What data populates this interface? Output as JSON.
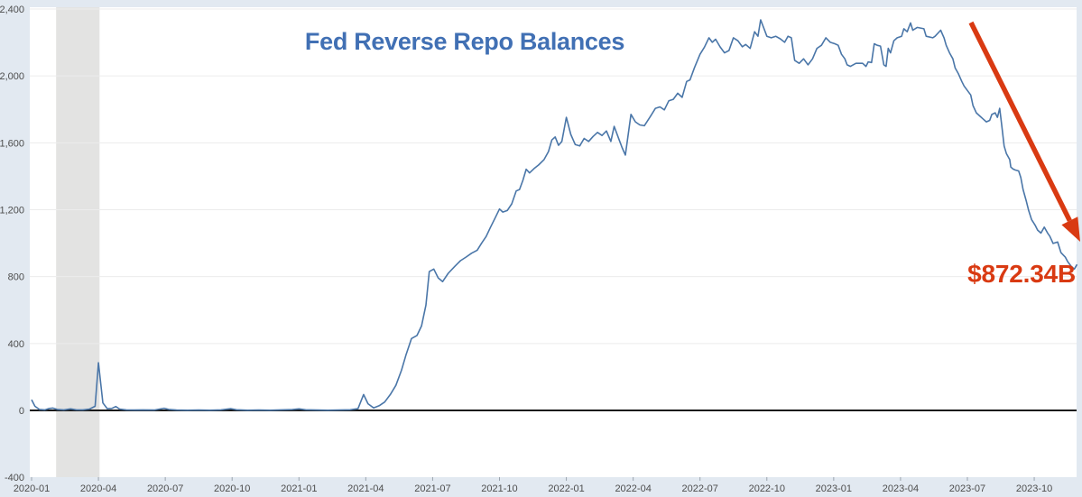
{
  "chart_data": {
    "type": "line",
    "title": "Fed Reverse Repo Balances",
    "xlabel": "",
    "ylabel": "",
    "y_unit": "billions of USD",
    "x_unit": "months since 2020-01",
    "ylim": [
      -400,
      2400
    ],
    "grid": true,
    "legend_position": "none",
    "y_ticks": [
      {
        "value": -400,
        "label": "-400"
      },
      {
        "value": 0,
        "label": "0"
      },
      {
        "value": 400,
        "label": "400"
      },
      {
        "value": 800,
        "label": "800"
      },
      {
        "value": 1200,
        "label": "1,200"
      },
      {
        "value": 1600,
        "label": "1,600"
      },
      {
        "value": 2000,
        "label": "2,000"
      },
      {
        "value": 2400,
        "label": "2,400"
      }
    ],
    "y_grid_values": [
      400,
      800,
      1200,
      1600,
      2000,
      2400
    ],
    "x_ticks": [
      {
        "month": 0,
        "label": "2020-01"
      },
      {
        "month": 3,
        "label": "2020-04"
      },
      {
        "month": 6,
        "label": "2020-07"
      },
      {
        "month": 9,
        "label": "2020-10"
      },
      {
        "month": 12,
        "label": "2021-01"
      },
      {
        "month": 15,
        "label": "2021-04"
      },
      {
        "month": 18,
        "label": "2021-07"
      },
      {
        "month": 21,
        "label": "2021-10"
      },
      {
        "month": 24,
        "label": "2022-01"
      },
      {
        "month": 27,
        "label": "2022-04"
      },
      {
        "month": 30,
        "label": "2022-07"
      },
      {
        "month": 33,
        "label": "2022-10"
      },
      {
        "month": 36,
        "label": "2023-01"
      },
      {
        "month": 39,
        "label": "2023-04"
      },
      {
        "month": 42,
        "label": "2023-07"
      },
      {
        "month": 45,
        "label": "2023-10"
      }
    ],
    "recession_band": {
      "from_month": 1.1,
      "to_month": 3.05
    },
    "series": [
      {
        "name": "Fed Reverse Repo Balances",
        "points": [
          [
            0,
            64
          ],
          [
            0.15,
            25
          ],
          [
            0.35,
            6
          ],
          [
            0.6,
            3
          ],
          [
            0.8,
            12
          ],
          [
            0.95,
            14
          ],
          [
            1.15,
            6
          ],
          [
            1.45,
            3
          ],
          [
            1.75,
            9
          ],
          [
            2.0,
            4
          ],
          [
            2.3,
            3
          ],
          [
            2.6,
            8
          ],
          [
            2.85,
            25
          ],
          [
            3.0,
            285
          ],
          [
            3.2,
            45
          ],
          [
            3.4,
            10
          ],
          [
            3.6,
            12
          ],
          [
            3.78,
            23
          ],
          [
            3.95,
            8
          ],
          [
            4.25,
            3
          ],
          [
            4.6,
            2
          ],
          [
            5.0,
            3
          ],
          [
            5.5,
            2
          ],
          [
            5.95,
            13
          ],
          [
            6.15,
            6
          ],
          [
            6.5,
            2
          ],
          [
            7.0,
            1
          ],
          [
            7.5,
            2
          ],
          [
            8.0,
            1
          ],
          [
            8.5,
            3
          ],
          [
            8.95,
            10
          ],
          [
            9.2,
            4
          ],
          [
            9.7,
            1
          ],
          [
            10.2,
            2
          ],
          [
            10.7,
            1
          ],
          [
            11.2,
            3
          ],
          [
            11.7,
            5
          ],
          [
            12.0,
            9
          ],
          [
            12.3,
            4
          ],
          [
            12.8,
            2
          ],
          [
            13.3,
            1
          ],
          [
            13.8,
            2
          ],
          [
            14.3,
            4
          ],
          [
            14.65,
            10
          ],
          [
            14.9,
            95
          ],
          [
            15.1,
            40
          ],
          [
            15.35,
            15
          ],
          [
            15.6,
            28
          ],
          [
            15.85,
            50
          ],
          [
            16.1,
            95
          ],
          [
            16.35,
            150
          ],
          [
            16.6,
            240
          ],
          [
            16.8,
            330
          ],
          [
            17.05,
            430
          ],
          [
            17.3,
            448
          ],
          [
            17.5,
            505
          ],
          [
            17.7,
            630
          ],
          [
            17.85,
            830
          ],
          [
            18.05,
            845
          ],
          [
            18.25,
            792
          ],
          [
            18.45,
            770
          ],
          [
            18.7,
            820
          ],
          [
            19.0,
            862
          ],
          [
            19.25,
            895
          ],
          [
            19.5,
            917
          ],
          [
            19.75,
            940
          ],
          [
            20.0,
            958
          ],
          [
            20.2,
            1000
          ],
          [
            20.4,
            1040
          ],
          [
            20.6,
            1096
          ],
          [
            20.8,
            1150
          ],
          [
            21.0,
            1204
          ],
          [
            21.15,
            1186
          ],
          [
            21.35,
            1195
          ],
          [
            21.55,
            1235
          ],
          [
            21.75,
            1312
          ],
          [
            21.9,
            1321
          ],
          [
            22.05,
            1375
          ],
          [
            22.2,
            1442
          ],
          [
            22.35,
            1420
          ],
          [
            22.55,
            1446
          ],
          [
            22.75,
            1467
          ],
          [
            23.0,
            1500
          ],
          [
            23.2,
            1548
          ],
          [
            23.35,
            1617
          ],
          [
            23.5,
            1635
          ],
          [
            23.65,
            1585
          ],
          [
            23.8,
            1608
          ],
          [
            24.0,
            1752
          ],
          [
            24.2,
            1650
          ],
          [
            24.4,
            1590
          ],
          [
            24.6,
            1581
          ],
          [
            24.8,
            1626
          ],
          [
            25.0,
            1608
          ],
          [
            25.2,
            1638
          ],
          [
            25.4,
            1662
          ],
          [
            25.6,
            1644
          ],
          [
            25.8,
            1671
          ],
          [
            26.0,
            1608
          ],
          [
            26.15,
            1698
          ],
          [
            26.35,
            1625
          ],
          [
            26.5,
            1572
          ],
          [
            26.65,
            1527
          ],
          [
            26.9,
            1770
          ],
          [
            27.1,
            1725
          ],
          [
            27.3,
            1707
          ],
          [
            27.5,
            1702
          ],
          [
            27.75,
            1752
          ],
          [
            28.0,
            1806
          ],
          [
            28.2,
            1815
          ],
          [
            28.4,
            1797
          ],
          [
            28.6,
            1851
          ],
          [
            28.8,
            1860
          ],
          [
            29.0,
            1896
          ],
          [
            29.2,
            1872
          ],
          [
            29.4,
            1967
          ],
          [
            29.55,
            1976
          ],
          [
            29.75,
            2048
          ],
          [
            30.0,
            2129
          ],
          [
            30.2,
            2172
          ],
          [
            30.4,
            2228
          ],
          [
            30.55,
            2201
          ],
          [
            30.7,
            2219
          ],
          [
            30.9,
            2174
          ],
          [
            31.1,
            2138
          ],
          [
            31.3,
            2152
          ],
          [
            31.5,
            2228
          ],
          [
            31.7,
            2210
          ],
          [
            31.9,
            2174
          ],
          [
            32.05,
            2188
          ],
          [
            32.25,
            2165
          ],
          [
            32.45,
            2264
          ],
          [
            32.6,
            2237
          ],
          [
            32.72,
            2335
          ],
          [
            32.85,
            2290
          ],
          [
            33.0,
            2237
          ],
          [
            33.2,
            2228
          ],
          [
            33.4,
            2237
          ],
          [
            33.6,
            2222
          ],
          [
            33.8,
            2201
          ],
          [
            33.95,
            2237
          ],
          [
            34.1,
            2228
          ],
          [
            34.25,
            2093
          ],
          [
            34.45,
            2075
          ],
          [
            34.65,
            2102
          ],
          [
            34.85,
            2066
          ],
          [
            35.05,
            2102
          ],
          [
            35.25,
            2165
          ],
          [
            35.45,
            2183
          ],
          [
            35.65,
            2228
          ],
          [
            35.85,
            2201
          ],
          [
            36.05,
            2192
          ],
          [
            36.2,
            2183
          ],
          [
            36.35,
            2129
          ],
          [
            36.5,
            2102
          ],
          [
            36.6,
            2066
          ],
          [
            36.75,
            2057
          ],
          [
            37.0,
            2075
          ],
          [
            37.3,
            2075
          ],
          [
            37.45,
            2057
          ],
          [
            37.55,
            2084
          ],
          [
            37.7,
            2080
          ],
          [
            37.82,
            2192
          ],
          [
            37.95,
            2183
          ],
          [
            38.1,
            2178
          ],
          [
            38.25,
            2066
          ],
          [
            38.35,
            2057
          ],
          [
            38.45,
            2165
          ],
          [
            38.55,
            2138
          ],
          [
            38.7,
            2210
          ],
          [
            38.85,
            2228
          ],
          [
            39.05,
            2237
          ],
          [
            39.15,
            2282
          ],
          [
            39.3,
            2264
          ],
          [
            39.45,
            2317
          ],
          [
            39.55,
            2273
          ],
          [
            39.75,
            2290
          ],
          [
            40.05,
            2282
          ],
          [
            40.15,
            2237
          ],
          [
            40.45,
            2228
          ],
          [
            40.55,
            2237
          ],
          [
            40.8,
            2273
          ],
          [
            40.95,
            2228
          ],
          [
            41.05,
            2183
          ],
          [
            41.2,
            2138
          ],
          [
            41.35,
            2102
          ],
          [
            41.45,
            2048
          ],
          [
            41.6,
            2012
          ],
          [
            41.75,
            1967
          ],
          [
            41.85,
            1940
          ],
          [
            42.0,
            1913
          ],
          [
            42.15,
            1886
          ],
          [
            42.25,
            1823
          ],
          [
            42.4,
            1779
          ],
          [
            42.55,
            1761
          ],
          [
            42.7,
            1743
          ],
          [
            42.85,
            1725
          ],
          [
            43.0,
            1734
          ],
          [
            43.1,
            1770
          ],
          [
            43.25,
            1779
          ],
          [
            43.35,
            1752
          ],
          [
            43.45,
            1806
          ],
          [
            43.55,
            1698
          ],
          [
            43.65,
            1581
          ],
          [
            43.75,
            1536
          ],
          [
            43.9,
            1500
          ],
          [
            43.95,
            1455
          ],
          [
            44.05,
            1443
          ],
          [
            44.15,
            1437
          ],
          [
            44.3,
            1432
          ],
          [
            44.4,
            1392
          ],
          [
            44.5,
            1321
          ],
          [
            44.65,
            1249
          ],
          [
            44.75,
            1195
          ],
          [
            44.88,
            1141
          ],
          [
            45.05,
            1105
          ],
          [
            45.15,
            1078
          ],
          [
            45.3,
            1060
          ],
          [
            45.45,
            1096
          ],
          [
            45.6,
            1060
          ],
          [
            45.7,
            1042
          ],
          [
            45.85,
            998
          ],
          [
            46.05,
            1007
          ],
          [
            46.2,
            943
          ],
          [
            46.4,
            916
          ],
          [
            46.5,
            890
          ],
          [
            46.65,
            863
          ],
          [
            46.8,
            845
          ],
          [
            46.92,
            872.34
          ]
        ]
      }
    ],
    "annotation": {
      "label": "$872.34B",
      "value": 872.34
    }
  },
  "colors": {
    "page_background": "#e2e9f1",
    "plot_background": "#ffffff",
    "recession_band": "#e3e3e2",
    "gridline": "#ececec",
    "zero_axis": "#1a1a1a",
    "series_line": "#4a76a8",
    "title_text": "#4170b4",
    "annotation_red": "#d93a12",
    "axis_text": "#4d4d4d",
    "tick_mark": "#9aa3ad"
  }
}
